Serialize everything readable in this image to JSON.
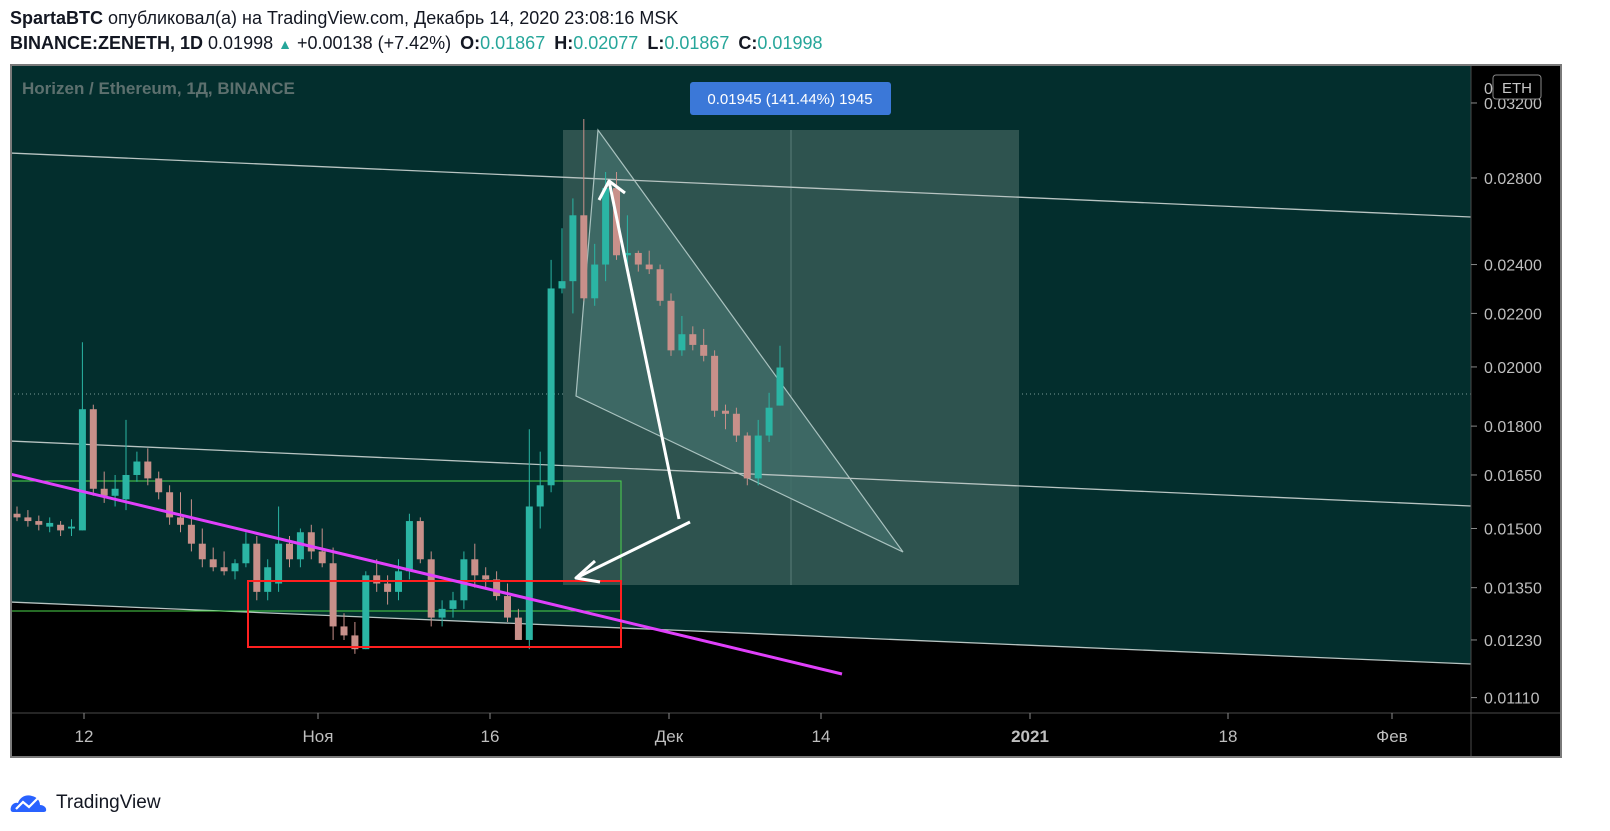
{
  "header": {
    "author": "SpartaBTC",
    "published_text": "опубликовал(а) на TradingView.com, Декабрь 14, 2020 23:08:16 MSK",
    "symbol": "BINANCE:ZENETH, 1D",
    "last": "0.01998",
    "change": "+0.00138 (+7.42%)",
    "o_label": "O:",
    "o_value": "0.01867",
    "h_label": "H:",
    "h_value": "0.02077",
    "l_label": "L:",
    "l_value": "0.01867",
    "c_label": "C:",
    "c_value": "0.01998"
  },
  "chart_data": {
    "type": "candlestick",
    "title": "Horizen / Ethereum, 1Д, BINANCE",
    "currency_badge": "ETH",
    "scale": "log",
    "ylim": [
      0.0108,
      0.0343
    ],
    "y_ticks": [
      "0.03200",
      "0.02800",
      "0.02400",
      "0.02200",
      "0.02000",
      "0.01800",
      "0.01650",
      "0.01500",
      "0.01350",
      "0.01230",
      "0.01110"
    ],
    "x_ticks": [
      "12",
      "Ноя",
      "16",
      "Дек",
      "14",
      "2021",
      "18",
      "Фев"
    ],
    "measure_label": "0.01945 (141.44%) 1945",
    "colors": {
      "up": "#2bb5a4",
      "down": "#c8908a",
      "bg_upper": "#032e2d",
      "bg_lower": "#000000",
      "trend": "#e040fb",
      "box": "#ff2020",
      "accent": "#3b78d8"
    },
    "candles": [
      [
        0.0154,
        0.0156,
        0.0152,
        0.0153
      ],
      [
        0.0153,
        0.0155,
        0.01505,
        0.0152
      ],
      [
        0.0152,
        0.01535,
        0.01495,
        0.0151
      ],
      [
        0.01505,
        0.0153,
        0.0149,
        0.01515
      ],
      [
        0.0151,
        0.0152,
        0.0148,
        0.01495
      ],
      [
        0.015,
        0.01525,
        0.0148,
        0.01505
      ],
      [
        0.01495,
        0.0209,
        0.01495,
        0.01855
      ],
      [
        0.01855,
        0.0187,
        0.0159,
        0.0161
      ],
      [
        0.0161,
        0.0166,
        0.0157,
        0.0159
      ],
      [
        0.0159,
        0.0165,
        0.0156,
        0.0161
      ],
      [
        0.0158,
        0.0182,
        0.0155,
        0.0165
      ],
      [
        0.0165,
        0.0172,
        0.0163,
        0.0169
      ],
      [
        0.0169,
        0.0173,
        0.0162,
        0.0164
      ],
      [
        0.0164,
        0.0166,
        0.0158,
        0.016
      ],
      [
        0.016,
        0.0162,
        0.0151,
        0.0153
      ],
      [
        0.0153,
        0.016,
        0.0149,
        0.0151
      ],
      [
        0.0151,
        0.0158,
        0.0144,
        0.0146
      ],
      [
        0.0146,
        0.015,
        0.014,
        0.0142
      ],
      [
        0.0142,
        0.0145,
        0.0139,
        0.014
      ],
      [
        0.014,
        0.0144,
        0.0138,
        0.0139
      ],
      [
        0.0139,
        0.0142,
        0.0137,
        0.0141
      ],
      [
        0.0141,
        0.0149,
        0.014,
        0.0146
      ],
      [
        0.0146,
        0.0148,
        0.0132,
        0.0134
      ],
      [
        0.0134,
        0.0142,
        0.0132,
        0.014
      ],
      [
        0.0136,
        0.0156,
        0.0134,
        0.0146
      ],
      [
        0.0146,
        0.0148,
        0.014,
        0.0142
      ],
      [
        0.0142,
        0.015,
        0.014,
        0.0149
      ],
      [
        0.0149,
        0.0151,
        0.0142,
        0.0144
      ],
      [
        0.0144,
        0.015,
        0.014,
        0.0141
      ],
      [
        0.0141,
        0.0145,
        0.0123,
        0.0126
      ],
      [
        0.0126,
        0.0129,
        0.0123,
        0.0124
      ],
      [
        0.0124,
        0.0127,
        0.012,
        0.0121
      ],
      [
        0.0121,
        0.0139,
        0.0121,
        0.0138
      ],
      [
        0.0138,
        0.0142,
        0.0134,
        0.0136
      ],
      [
        0.0136,
        0.0138,
        0.0131,
        0.0134
      ],
      [
        0.0134,
        0.0142,
        0.0132,
        0.0139
      ],
      [
        0.0139,
        0.0154,
        0.0137,
        0.0152
      ],
      [
        0.0152,
        0.0153,
        0.0141,
        0.0142
      ],
      [
        0.0142,
        0.0144,
        0.0126,
        0.0128
      ],
      [
        0.0128,
        0.0132,
        0.0126,
        0.013
      ],
      [
        0.013,
        0.0134,
        0.0128,
        0.0132
      ],
      [
        0.0132,
        0.0144,
        0.013,
        0.0142
      ],
      [
        0.0142,
        0.0146,
        0.0135,
        0.0138
      ],
      [
        0.0138,
        0.014,
        0.0135,
        0.0137
      ],
      [
        0.0137,
        0.0139,
        0.0132,
        0.0133
      ],
      [
        0.0133,
        0.0136,
        0.0127,
        0.0128
      ],
      [
        0.0128,
        0.013,
        0.0123,
        0.0123
      ],
      [
        0.0123,
        0.0179,
        0.0121,
        0.0156
      ],
      [
        0.0156,
        0.0172,
        0.015,
        0.0162
      ],
      [
        0.0162,
        0.0242,
        0.016,
        0.023
      ],
      [
        0.023,
        0.0256,
        0.0228,
        0.0233
      ],
      [
        0.0233,
        0.027,
        0.022,
        0.0262
      ],
      [
        0.0262,
        0.0311,
        0.0225,
        0.0226
      ],
      [
        0.0226,
        0.0249,
        0.0223,
        0.024
      ],
      [
        0.024,
        0.0283,
        0.0233,
        0.0275
      ],
      [
        0.0275,
        0.0283,
        0.0242,
        0.0244
      ],
      [
        0.0244,
        0.0262,
        0.024,
        0.0245
      ],
      [
        0.0245,
        0.0246,
        0.0237,
        0.024
      ],
      [
        0.024,
        0.0246,
        0.0236,
        0.0238
      ],
      [
        0.0238,
        0.024,
        0.0223,
        0.0225
      ],
      [
        0.0225,
        0.0228,
        0.0204,
        0.0206
      ],
      [
        0.0206,
        0.0219,
        0.0204,
        0.0212
      ],
      [
        0.0212,
        0.0215,
        0.0206,
        0.0208
      ],
      [
        0.0208,
        0.0214,
        0.0202,
        0.0204
      ],
      [
        0.0204,
        0.0206,
        0.0183,
        0.0185
      ],
      [
        0.0185,
        0.0187,
        0.0179,
        0.0184
      ],
      [
        0.0184,
        0.0186,
        0.0175,
        0.0177
      ],
      [
        0.0177,
        0.0178,
        0.0162,
        0.0164
      ],
      [
        0.0164,
        0.0182,
        0.0162,
        0.0177
      ],
      [
        0.0177,
        0.0191,
        0.0175,
        0.0186
      ],
      [
        0.01867,
        0.02077,
        0.01867,
        0.01998
      ]
    ]
  },
  "footer": {
    "brand": "TradingView"
  }
}
